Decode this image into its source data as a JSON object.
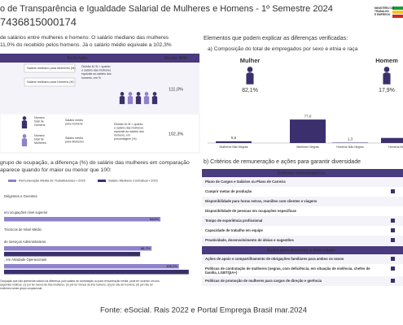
{
  "header": {
    "title": "o de Transparência e Igualdade Salarial de Mulheres e Homens - 1º Semestre 2024",
    "id": "7436815000174",
    "logo": [
      "MINISTÉRIO DO",
      "TRABALHO",
      "E EMPREGO"
    ]
  },
  "salary": {
    "text": [
      "de salários entre mulheres e homens: O salário mediano das mulheres",
      "11,0% do recebido pelos homens. Já o salário médio equivale a 102,3%"
    ],
    "headers": [
      "Definição",
      "Razão M/H"
    ],
    "rows": [
      {
        "labels": [
          [
            "Salário mediano para Mulheres (M)"
          ],
          [
            "Salário mediano para Homens (H)"
          ],
          [
            "Divisão M /H = quanto",
            "o salário das mulheres",
            "equivale ao salário dos",
            "homens, em %"
          ]
        ],
        "ratio": "111,0%"
      },
      {
        "labels": [
          [
            "Número",
            "total de",
            "Homens"
          ],
          [
            "Salário médio",
            "para Homens"
          ],
          [
            "Número",
            "total de",
            "Mulheres"
          ],
          [
            "Salário médio",
            "para Mulheres"
          ],
          [
            "Divisão M /H = quanto",
            "o salário das mulheres",
            "equivale ao salário dos",
            "homens, em",
            "porcentagem (%)"
          ]
        ],
        "ratio": "102,3%"
      }
    ]
  },
  "occupation": {
    "title": [
      "grupo de ocupação, a diferença (%) do salário das mulheres em comparação",
      "aparece quando for maior ou menor que 100:"
    ],
    "categories": [
      "Dirigentes e Gerentes",
      "em ocupações nível superior",
      "Técnicos de Nível Médio",
      "de Serviços Administrativos",
      ", em Atividade Operacionais"
    ],
    "series": [
      {
        "name": "Remuneração Média de Trabalhadores • 2022",
        "color": "#8f82cc",
        "values": [
          null,
          94.0,
          null,
          88.7,
          105.1
        ],
        "value_labels": [
          null,
          "94,0%",
          null,
          "88,7%",
          "105,1%"
        ]
      },
      {
        "name": "Salário Mediano Contratual • 2022",
        "color": "#3b2f6e",
        "values": [
          null,
          null,
          null,
          81.8,
          111.0
        ],
        "value_labels": [
          null,
          null,
          null,
          "81,8%",
          "111,0%"
        ]
      }
    ],
    "xlim": [
      0,
      115
    ],
    "note": [
      "Ocupação que não apresenta cálculo da diferença, pois salário de contratação ou para remuneração média, pode ter ocorrido um dos",
      "seguintes motivos: (1) por ter menos de três mulheres; (2) por ter menos de três homens; (3) por não ter homens; (4) por não ter",
      "mulheres nesse grupo ocupacional."
    ]
  },
  "composition": {
    "intro": "Elementos que podem explicar as diferenças verificadas:",
    "title": "a) Composição do total de empregados por sexo e etnia e raça",
    "women": {
      "label": "Mulher",
      "value": "82,1%"
    },
    "men": {
      "label": "Homem",
      "value": "17,9%"
    },
    "categories": [
      "Mulheres Não Negras",
      "Mulheres Negras",
      "Homens Não Negros",
      "Homens Negros"
    ],
    "values": [
      5.6,
      77.0,
      1.3,
      16.6
    ],
    "value_labels": [
      "5,6",
      "77,0",
      "1,3",
      null
    ],
    "ylim": [
      0,
      80
    ],
    "color": "#3b2f6e"
  },
  "criteria": {
    "title": "b) Critérios de remuneração e ações para garantir diversidade",
    "header1": "Critérios remuneratórios",
    "rows1": [
      [
        "Plano de Cargos e Salários ou Plano de Carreira"
      ],
      [
        "Cumprir metas de produção"
      ],
      [
        "Disponibilidade para horas extras, reuniões com clientes e viagens"
      ],
      [
        "Disponibilidade de pessoas em ocupações específicas"
      ],
      [
        "Tempo de experiência profissional"
      ],
      [
        "Capacidade de trabalho em equipe"
      ],
      [
        "Proatividade, desenvolvimento de ideias e sugestões"
      ]
    ],
    "header2": "Ações para aumentar a diversidade",
    "rows2": [
      [
        "Ações de apoio e compartilhamento de obrigações familiares para ambos os sexos"
      ],
      [
        "Políticas de contratação de mulheres (negras, com deficiência, em situação de violência, chefes de",
        "família, LGBTQIA+)"
      ],
      [
        "Políticas de promoção de mulheres para cargos de direção e gerência"
      ]
    ]
  },
  "footer": "Fonte: eSocial. Rais 2022 e Portal Emprega Brasil mar.2024"
}
